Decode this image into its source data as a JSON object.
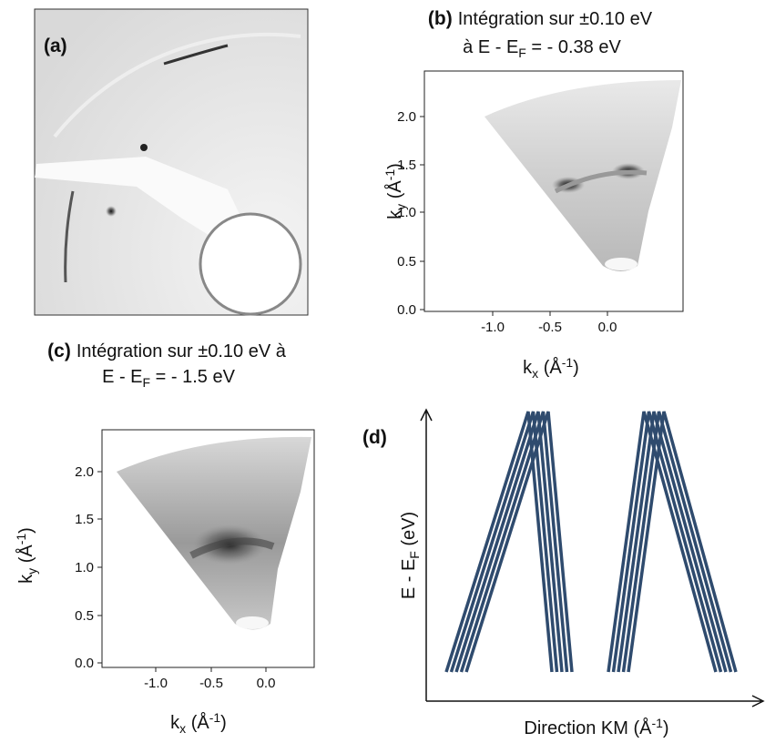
{
  "panels": {
    "a": {
      "label": "(a)"
    },
    "b": {
      "label": "(b)",
      "title_line1": "Intégration sur ±0.10 eV",
      "title_line2": {
        "text": "à E - E",
        "sub": "F",
        "rest": " = - 0.38 eV"
      },
      "y_label": {
        "text": "k",
        "sub": "y",
        "rest": " (Å",
        "sup": "-1",
        "end": ")"
      },
      "x_label": {
        "text": "k",
        "sub": "x",
        "rest": " (Å",
        "sup": "-1",
        "end": ")"
      },
      "yticks": [
        "0.0",
        "0.5",
        "1.0",
        "1.5",
        "2.0"
      ],
      "xticks": [
        "-1.0",
        "-0.5",
        "0.0"
      ]
    },
    "c": {
      "label": "(c)",
      "title_line1": "Intégration sur ±0.10 eV à",
      "title_line2": {
        "text": "E - E",
        "sub": "F",
        "rest": " = - 1.5 eV"
      },
      "y_label": {
        "text": "k",
        "sub": "y",
        "rest": " (Å",
        "sup": "-1",
        "end": ")"
      },
      "x_label": {
        "text": "k",
        "sub": "x",
        "rest": " (Å",
        "sup": "-1",
        "end": ")"
      },
      "yticks": [
        "0.0",
        "0.5",
        "1.0",
        "1.5",
        "2.0"
      ],
      "xticks": [
        "-1.0",
        "-0.5",
        "0.0"
      ]
    },
    "d": {
      "label": "(d)",
      "y_label": {
        "text": "E - E",
        "sub": "F",
        "rest": " (eV)"
      },
      "x_label": {
        "text": "Direction KM (Å",
        "sup": "-1",
        "end": ")"
      }
    }
  }
}
